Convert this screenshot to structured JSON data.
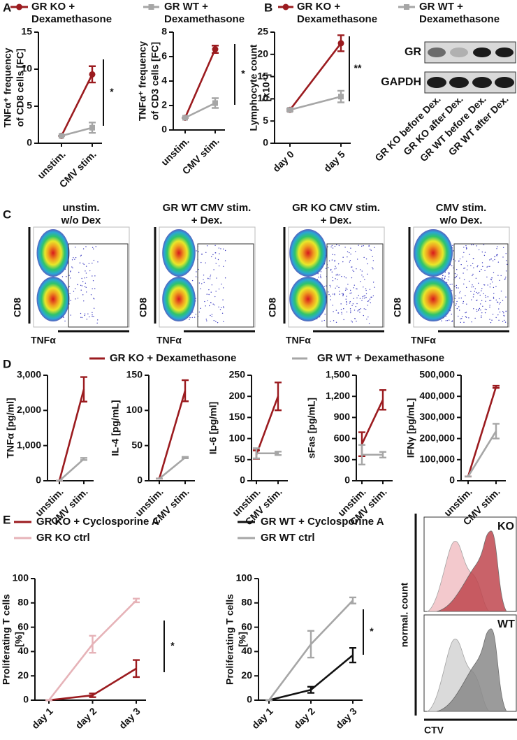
{
  "panels": [
    "A",
    "B",
    "C",
    "D",
    "E"
  ],
  "chart_data": [
    {
      "type": "line",
      "ylabel": [
        "TNFα⁺ frequency",
        "of CD8 cells [FC]"
      ],
      "categories": [
        "unstim.",
        "CMV stim."
      ],
      "series": [
        {
          "name": "GR KO + Dexamethasone",
          "color": "#9b1b1f",
          "marker": "circle",
          "values": [
            1,
            9.3
          ],
          "errors": [
            0,
            1.1
          ]
        },
        {
          "name": "GR WT + Dexamethasone",
          "color": "#a6a6a6",
          "marker": "square",
          "values": [
            1,
            2.1
          ],
          "errors": [
            0,
            0.7
          ]
        }
      ],
      "ylim": [
        0,
        15
      ],
      "yticks": [
        0,
        5,
        10,
        15
      ],
      "annotation": "*"
    },
    {
      "type": "line",
      "ylabel": [
        "TNFα⁺ frequency",
        "of CD3 cells [FC]"
      ],
      "categories": [
        "unstim.",
        "CMV stim."
      ],
      "series": [
        {
          "color": "#9b1b1f",
          "marker": "circle",
          "values": [
            1,
            6.6
          ],
          "errors": [
            0,
            0.3
          ]
        },
        {
          "color": "#a6a6a6",
          "marker": "square",
          "values": [
            1,
            2.2
          ],
          "errors": [
            0,
            0.4
          ]
        }
      ],
      "ylim": [
        0,
        8
      ],
      "yticks": [
        0,
        2,
        4,
        6,
        8
      ],
      "annotation": "*"
    },
    {
      "type": "line",
      "ylabel": [
        "Lymphocyte count",
        "[x10⁴]"
      ],
      "categories": [
        "day 0",
        "day 5"
      ],
      "series": [
        {
          "name": "GR KO + Dexamethasone",
          "color": "#9b1b1f",
          "marker": "circle",
          "values": [
            7.5,
            22.5
          ],
          "errors": [
            0.3,
            1.8
          ]
        },
        {
          "name": "GR WT + Dexamethasone",
          "color": "#a6a6a6",
          "marker": "square",
          "values": [
            7.5,
            10.5
          ],
          "errors": [
            0.3,
            1.3
          ]
        }
      ],
      "ylim": [
        0,
        25
      ],
      "yticks": [
        0,
        5,
        10,
        15,
        20,
        25
      ],
      "annotation": "**"
    },
    {
      "type": "line",
      "ylabel": [
        "TNFα [pg/ml]"
      ],
      "categories": [
        "unstim.",
        "CMV stim."
      ],
      "series": [
        {
          "name": "GR KO + Dexamethasone",
          "color": "#9b1b1f",
          "values": [
            0,
            2600
          ],
          "errors": [
            0,
            350
          ]
        },
        {
          "name": "GR WT + Dexamethasone",
          "color": "#a6a6a6",
          "values": [
            0,
            620
          ],
          "errors": [
            0,
            30
          ]
        }
      ],
      "ylim": [
        0,
        3000
      ],
      "yticks": [
        0,
        {
          "value": 1000,
          "label": "1,000"
        },
        {
          "value": 2000,
          "label": "2,000"
        },
        {
          "value": 3000,
          "label": "3,000"
        }
      ]
    },
    {
      "type": "line",
      "ylabel": [
        "IL-4 [pg/mL]"
      ],
      "categories": [
        "unstim.",
        "CMV stim."
      ],
      "series": [
        {
          "color": "#9b1b1f",
          "values": [
            3,
            128
          ],
          "errors": [
            0,
            15
          ]
        },
        {
          "color": "#a6a6a6",
          "values": [
            3,
            33
          ],
          "errors": [
            0,
            1
          ]
        }
      ],
      "ylim": [
        0,
        150
      ],
      "yticks": [
        0,
        50,
        100,
        150
      ]
    },
    {
      "type": "line",
      "ylabel": [
        "IL-6 [pg/ml]"
      ],
      "categories": [
        "unstim.",
        "CMV stim."
      ],
      "series": [
        {
          "color": "#9b1b1f",
          "values": [
            62,
            200
          ],
          "errors": [
            10,
            33
          ]
        },
        {
          "color": "#a6a6a6",
          "values": [
            65,
            65
          ],
          "errors": [
            12,
            4
          ]
        }
      ],
      "ylim": [
        0,
        250
      ],
      "yticks": [
        0,
        50,
        100,
        150,
        200,
        250
      ]
    },
    {
      "type": "line",
      "ylabel": [
        "sFas [pg/mL]"
      ],
      "categories": [
        "unstim.",
        "CMV stim."
      ],
      "series": [
        {
          "color": "#9b1b1f",
          "values": [
            520,
            1150
          ],
          "errors": [
            170,
            140
          ]
        },
        {
          "color": "#a6a6a6",
          "values": [
            370,
            370
          ],
          "errors": [
            140,
            40
          ]
        }
      ],
      "ylim": [
        0,
        1500
      ],
      "yticks": [
        0,
        300,
        600,
        900,
        {
          "value": 1200,
          "label": "1,200"
        },
        {
          "value": 1500,
          "label": "1,500"
        }
      ]
    },
    {
      "type": "line",
      "ylabel": [
        "IFNγ [pg/mL]"
      ],
      "categories": [
        "unstim.",
        "CMV stim."
      ],
      "series": [
        {
          "color": "#9b1b1f",
          "values": [
            20000,
            445000
          ],
          "errors": [
            0,
            5000
          ]
        },
        {
          "color": "#a6a6a6",
          "values": [
            20000,
            235000
          ],
          "errors": [
            0,
            35000
          ]
        }
      ],
      "ylim": [
        0,
        500000
      ],
      "yticks": [
        0,
        {
          "value": 100000,
          "label": "100,000"
        },
        {
          "value": 200000,
          "label": "200,000"
        },
        {
          "value": 300000,
          "label": "300,000"
        },
        {
          "value": 400000,
          "label": "400,000"
        },
        {
          "value": 500000,
          "label": "500,000"
        }
      ]
    },
    {
      "type": "line",
      "ylabel": [
        "Proliferating T cells",
        "[%]"
      ],
      "categories": [
        "day 1",
        "day 2",
        "day 3"
      ],
      "series": [
        {
          "name": "GR KO + Cyclosporine A",
          "color": "#9b1b1f",
          "values": [
            0,
            4,
            26
          ],
          "errors": [
            0,
            1.5,
            7
          ]
        },
        {
          "name": "GR KO ctrl",
          "color": "#e6b3b8",
          "values": [
            0,
            46,
            82
          ],
          "errors": [
            0,
            7,
            1.5
          ]
        }
      ],
      "ylim": [
        0,
        100
      ],
      "yticks": [
        0,
        20,
        40,
        60,
        80,
        100
      ],
      "annotation": "*"
    },
    {
      "type": "line",
      "ylabel": [
        "Proliferating T cells",
        "[%]"
      ],
      "categories": [
        "day 1",
        "day 2",
        "day 3"
      ],
      "series": [
        {
          "name": "GR WT + Cyclosporine A",
          "color": "#111111",
          "values": [
            0,
            8.5,
            37
          ],
          "errors": [
            0,
            2.5,
            6
          ]
        },
        {
          "name": "GR WT ctrl",
          "color": "#a6a6a6",
          "values": [
            0,
            46,
            82
          ],
          "errors": [
            0,
            11,
            2.5
          ]
        }
      ],
      "ylim": [
        0,
        100
      ],
      "yticks": [
        0,
        20,
        40,
        60,
        80,
        100
      ],
      "annotation": "*"
    }
  ],
  "blot": {
    "rows": [
      "GR",
      "GAPDH"
    ],
    "lanes": [
      "GR KO before Dex.",
      "GR KO after Dex.",
      "GR WT before Dex.",
      "GR WT after Dex."
    ]
  },
  "flow": {
    "plots": [
      {
        "title": [
          "unstim.",
          "w/o Dex"
        ],
        "y_label": "CD8",
        "x_label": "TNFα"
      },
      {
        "title": [
          "GR WT CMV stim.",
          "+ Dex."
        ],
        "y_label": "CD8",
        "x_label": "TNFα"
      },
      {
        "title": [
          "GR KO CMV stim.",
          "+ Dex."
        ],
        "y_label": "CD8",
        "x_label": "TNFα"
      },
      {
        "title": [
          "CMV stim.",
          "w/o Dex."
        ],
        "y_label": "CD8",
        "x_label": "TNFα"
      }
    ]
  },
  "histograms": {
    "labels": [
      "KO",
      "WT"
    ],
    "y_label": "normal. count",
    "x_label": "CTV"
  }
}
